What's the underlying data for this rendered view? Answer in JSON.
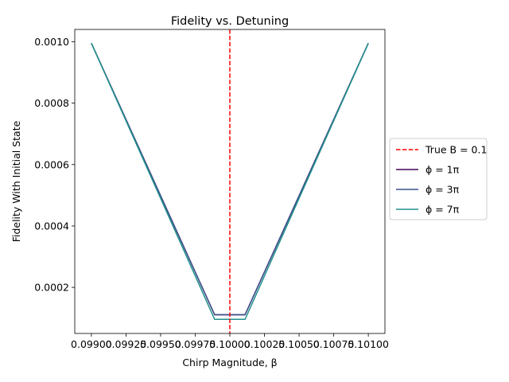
{
  "chart_data": {
    "type": "line",
    "title": "Fidelity vs. Detuning",
    "xlabel": "Chirp Magnitude, β",
    "ylabel": "Fidelity With Initial State",
    "xlim": [
      0.09888,
      0.10112
    ],
    "ylim": [
      5e-05,
      0.00104
    ],
    "xticks": [
      0.099,
      0.09925,
      0.0995,
      0.09975,
      0.1,
      0.10025,
      0.1005,
      0.10075,
      0.101
    ],
    "xtick_labels": [
      "0.09900",
      "0.09925",
      "0.09950",
      "0.09975",
      "0.10000",
      "0.10025",
      "0.10050",
      "0.10075",
      "0.10100"
    ],
    "yticks": [
      0.0002,
      0.0004,
      0.0006,
      0.0008,
      0.001
    ],
    "ytick_labels": [
      "0.0002",
      "0.0004",
      "0.0006",
      "0.0008",
      "0.0010"
    ],
    "grid": false,
    "legend": "right-outside",
    "vline": {
      "x": 0.1,
      "name": "True B = 0.1",
      "color": "#ff0000",
      "style": "dashed"
    },
    "series": [
      {
        "name": "ϕ = 1π",
        "color": "#440154",
        "x": [
          0.099,
          0.09989,
          0.1,
          0.10011,
          0.101
        ],
        "y": [
          0.000995,
          0.000111,
          0.000111,
          0.000111,
          0.000995
        ]
      },
      {
        "name": "ϕ = 3π",
        "color": "#3b528b",
        "x": [
          0.099,
          0.09989,
          0.1,
          0.10011,
          0.101
        ],
        "y": [
          0.000995,
          0.000111,
          0.000111,
          0.000111,
          0.000995
        ]
      },
      {
        "name": "ϕ = 7π",
        "color": "#21918c",
        "x": [
          0.099,
          0.09989,
          0.1,
          0.10011,
          0.101
        ],
        "y": [
          0.000995,
          9.6e-05,
          9.6e-05,
          9.6e-05,
          0.000995
        ]
      }
    ]
  }
}
